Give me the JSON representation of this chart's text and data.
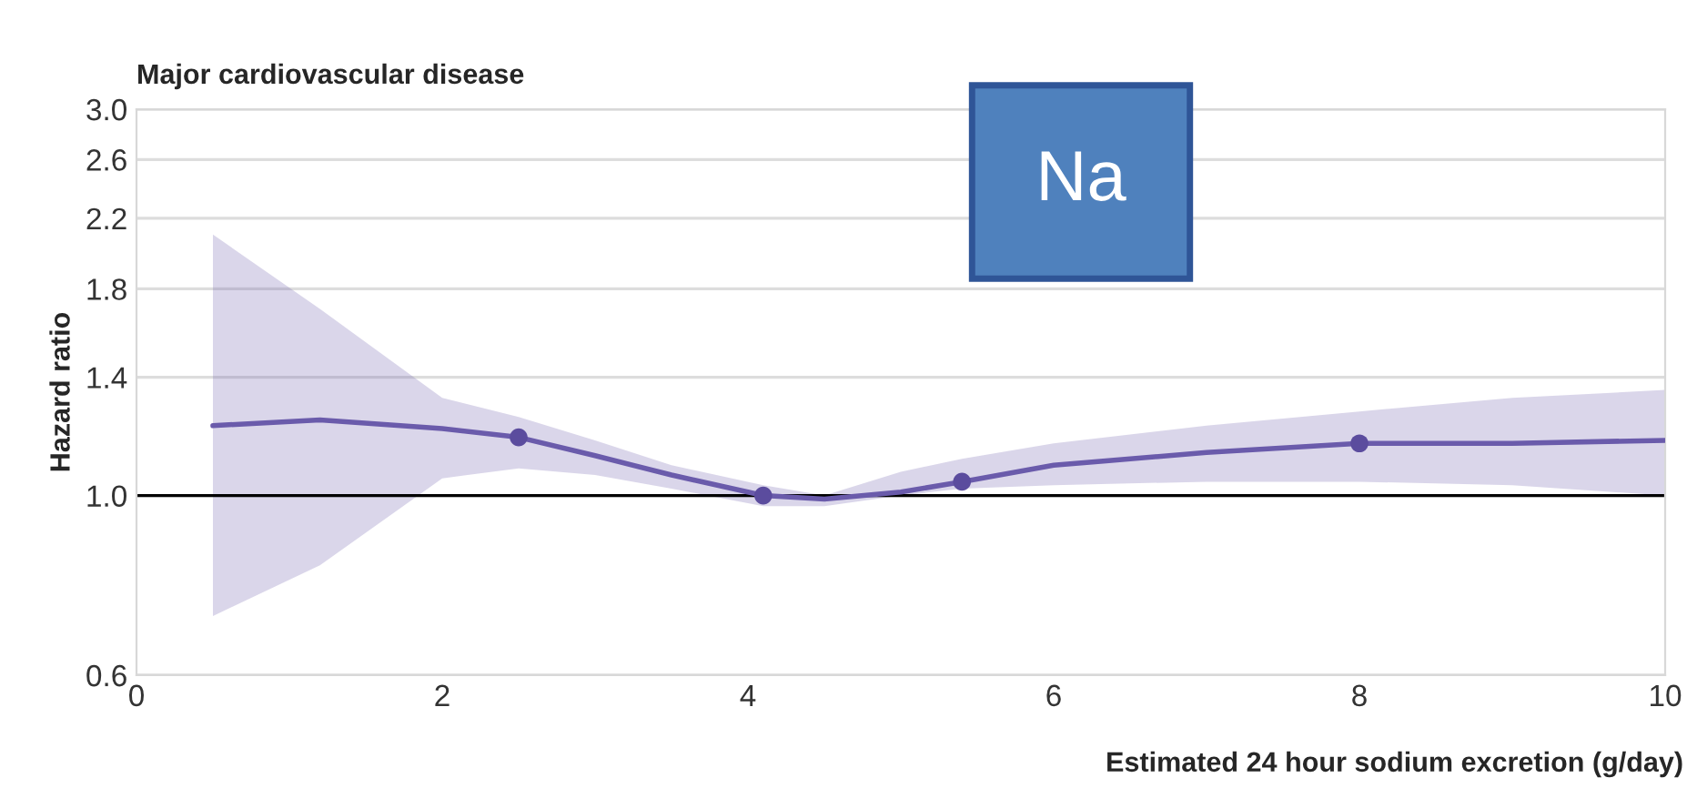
{
  "chart_data": {
    "type": "line",
    "title": "Major cardiovascular disease",
    "xlabel": "Estimated 24 hour sodium excretion (g/day)",
    "ylabel": "Hazard ratio",
    "series": [
      {
        "color": "#6a5bab",
        "marker": "none",
        "x": [
          0.5,
          1.2,
          2.0,
          2.5,
          3.0,
          3.5,
          4.1,
          4.5,
          5.0,
          5.4,
          6.0,
          7.0,
          8.0,
          9.0,
          10.0
        ],
        "values": [
          1.22,
          1.24,
          1.21,
          1.18,
          1.12,
          1.06,
          1.0,
          0.99,
          1.01,
          1.04,
          1.09,
          1.13,
          1.16,
          1.16,
          1.17
        ],
        "lower": [
          0.71,
          0.82,
          1.05,
          1.08,
          1.06,
          1.02,
          0.97,
          0.97,
          1.0,
          1.02,
          1.03,
          1.04,
          1.04,
          1.03,
          1.0
        ],
        "upper": [
          2.1,
          1.7,
          1.32,
          1.25,
          1.17,
          1.09,
          1.03,
          1.0,
          1.07,
          1.11,
          1.16,
          1.22,
          1.27,
          1.32,
          1.35
        ]
      },
      {
        "type": "scatter",
        "color": "#5b4c9e",
        "marker": "circle",
        "x": [
          2.5,
          4.1,
          5.4,
          8.0
        ],
        "values": [
          1.18,
          1.0,
          1.04,
          1.16
        ]
      }
    ],
    "log": "y",
    "xlim": [
      0,
      10
    ],
    "xticks": [
      0,
      2,
      4,
      6,
      8,
      10
    ],
    "ylim": [
      0.6,
      3.0
    ],
    "yticks": [
      0.6,
      {
        "value": 1.0,
        "label": "1.0"
      },
      1.4,
      1.8,
      2.2,
      2.6,
      {
        "value": 3.0,
        "label": "3.0"
      }
    ],
    "grid": "y",
    "ref_lines": [
      {
        "axis": "y",
        "value": 1.0,
        "color": "#000000"
      }
    ],
    "annotations": [
      "Na"
    ]
  }
}
